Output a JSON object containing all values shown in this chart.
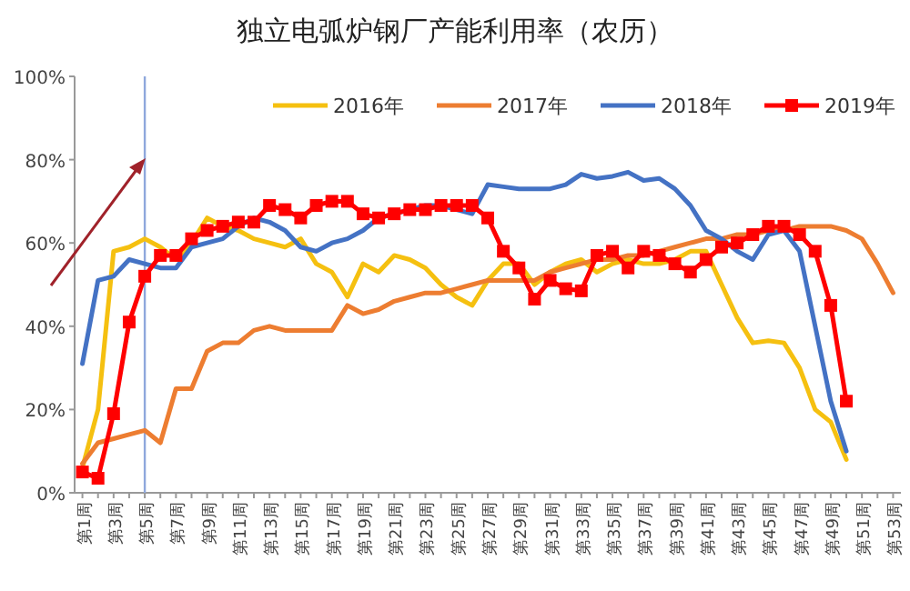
{
  "chart_data": {
    "type": "line",
    "title": "独立电弧炉钢厂产能利用率（农历）",
    "categories": [
      "第1周",
      null,
      "第3周",
      null,
      "第5周",
      null,
      "第7周",
      null,
      "第9周",
      null,
      "第11周",
      null,
      "第13周",
      null,
      "第15周",
      null,
      "第17周",
      null,
      "第19周",
      null,
      "第21周",
      null,
      "第23周",
      null,
      "第25周",
      null,
      "第27周",
      null,
      "第29周",
      null,
      "第31周",
      null,
      "第33周",
      null,
      "第35周",
      null,
      "第37周",
      null,
      "第39周",
      null,
      "第41周",
      null,
      "第43周",
      null,
      "第45周",
      null,
      "第47周",
      null,
      "第49周",
      null,
      "第51周",
      null,
      "第53周"
    ],
    "series": [
      {
        "name": "2016年",
        "color": "#f5c010",
        "marker": "none",
        "values": [
          6,
          20,
          58,
          59,
          61,
          59,
          56,
          60,
          66,
          64,
          63,
          61,
          60,
          59,
          61,
          55,
          53,
          47,
          55,
          53,
          57,
          56,
          54,
          50,
          47,
          45,
          51,
          55,
          55,
          50,
          53,
          55,
          56,
          53,
          55,
          56,
          55,
          55,
          56,
          58,
          58,
          50,
          42,
          36,
          36.5,
          36,
          30,
          20,
          17,
          8,
          null,
          null,
          null
        ]
      },
      {
        "name": "2017年",
        "color": "#ed7d31",
        "marker": "none",
        "values": [
          7,
          12,
          13,
          14,
          15,
          12,
          25,
          25,
          34,
          36,
          36,
          39,
          40,
          39,
          39,
          39,
          39,
          45,
          43,
          44,
          46,
          47,
          48,
          48,
          49,
          50,
          51,
          51,
          51,
          51,
          53,
          54,
          55,
          56,
          56,
          57,
          57,
          58,
          59,
          60,
          61,
          61,
          62,
          62,
          63,
          63,
          64,
          64,
          64,
          63,
          61,
          55,
          48
        ]
      },
      {
        "name": "2018年",
        "color": "#4472c4",
        "marker": "none",
        "values": [
          31,
          51,
          52,
          56,
          55,
          54,
          54,
          59,
          60,
          61,
          64,
          66,
          65,
          63,
          59,
          58,
          60,
          61,
          63,
          66,
          67,
          68,
          69,
          69,
          68,
          67,
          74,
          73.5,
          73,
          73,
          73,
          74,
          76.5,
          75.5,
          76,
          77,
          75,
          75.5,
          73,
          69,
          63,
          61,
          58,
          56,
          62,
          63,
          58,
          40,
          22,
          10,
          null,
          null,
          null
        ]
      },
      {
        "name": "2019年",
        "color": "#ff0000",
        "marker": "square",
        "values": [
          5,
          3.5,
          19,
          41,
          52,
          57,
          57,
          61,
          63,
          64,
          65,
          65,
          69,
          68,
          66,
          69,
          70,
          70,
          67,
          66,
          67,
          68,
          68,
          69,
          69,
          69,
          66,
          58,
          54,
          46.5,
          51,
          49,
          48.5,
          57,
          58,
          54,
          58,
          57,
          55,
          53,
          56,
          59,
          60,
          62,
          64,
          64,
          62,
          58,
          45,
          22,
          null,
          null,
          null
        ]
      }
    ],
    "ylim": [
      0,
      100
    ],
    "yticks": [
      {
        "value": 0,
        "label": "0%"
      },
      {
        "value": 20,
        "label": "20%"
      },
      {
        "value": 40,
        "label": "40%"
      },
      {
        "value": 60,
        "label": "60%"
      },
      {
        "value": 80,
        "label": "80%"
      },
      {
        "value": 100,
        "label": "100%"
      }
    ],
    "ref_lines": [
      {
        "axis": "x",
        "value": "第5周",
        "color": "#8fa8dc"
      }
    ],
    "legend": "top",
    "grid": false,
    "line_style": "solid"
  }
}
